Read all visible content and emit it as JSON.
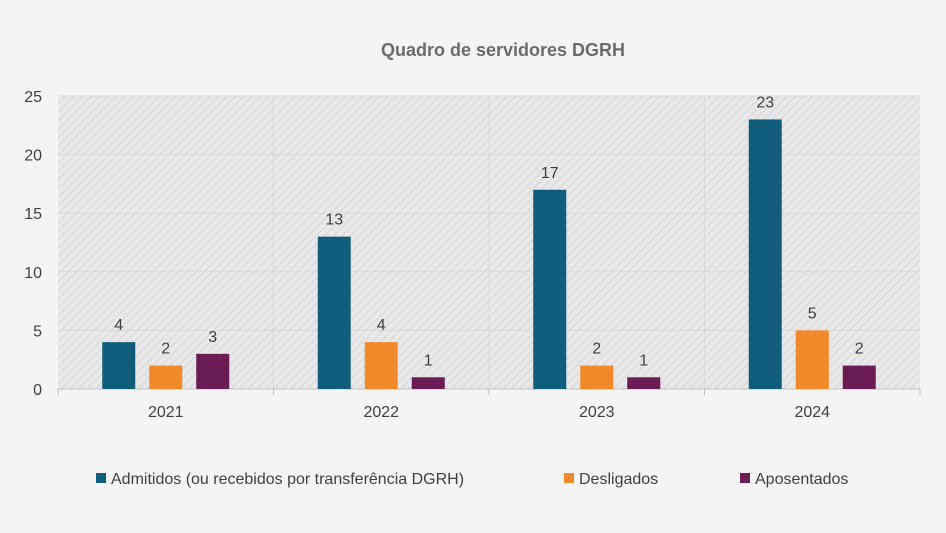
{
  "chart_data": {
    "type": "bar",
    "title": "Quadro de servidores DGRH",
    "categories": [
      "2021",
      "2022",
      "2023",
      "2024"
    ],
    "series": [
      {
        "name": "Admitidos (ou recebidos por transferência DGRH)",
        "values": [
          4,
          13,
          17,
          23
        ],
        "color": "#115e7c"
      },
      {
        "name": "Desligados",
        "values": [
          2,
          4,
          2,
          5
        ],
        "color": "#f28a2c"
      },
      {
        "name": "Aposentados",
        "values": [
          3,
          1,
          1,
          2
        ],
        "color": "#6b1c55"
      }
    ],
    "ylim": [
      0,
      25
    ],
    "yticks": [
      "0",
      "5",
      "10",
      "15",
      "20",
      "25"
    ],
    "grid": true,
    "data_labels": true,
    "legend_position": "bottom"
  }
}
